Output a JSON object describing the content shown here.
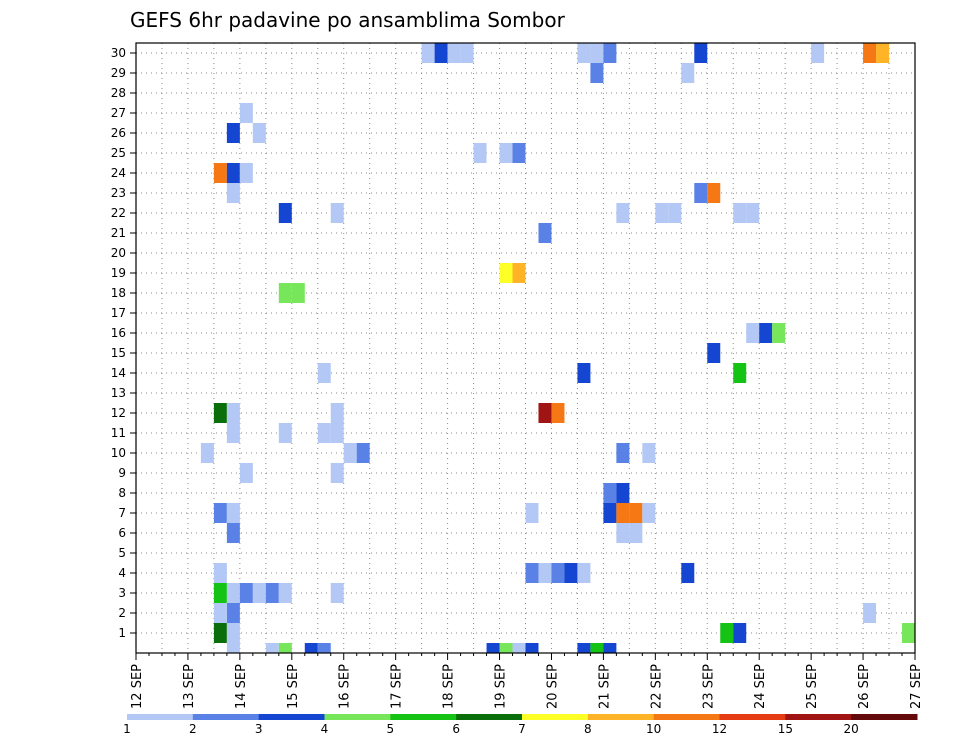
{
  "chart_data": {
    "type": "heatmap",
    "title": "GEFS 6hr padavine po ansamblima Sombor",
    "x_ticks": [
      "12 SEP",
      "13 SEP",
      "14 SEP",
      "15 SEP",
      "16 SEP",
      "17 SEP",
      "18 SEP",
      "19 SEP",
      "20 SEP",
      "21 SEP",
      "22 SEP",
      "23 SEP",
      "24 SEP",
      "25 SEP",
      "26 SEP",
      "27 SEP"
    ],
    "y_ticks": [
      "1",
      "2",
      "3",
      "4",
      "5",
      "6",
      "7",
      "8",
      "9",
      "10",
      "11",
      "12",
      "13",
      "14",
      "15",
      "16",
      "17",
      "18",
      "19",
      "20",
      "21",
      "22",
      "23",
      "24",
      "25",
      "26",
      "27",
      "28",
      "29",
      "30"
    ],
    "x_range": [
      "2012-09-12 00Z",
      "2012-09-27 00Z"
    ],
    "y_range": [
      0,
      30
    ],
    "grid": true,
    "colorbar": {
      "labels": [
        "1",
        "2",
        "3",
        "4",
        "5",
        "6",
        "7",
        "8",
        "10",
        "12",
        "15",
        "20"
      ],
      "colors": [
        "#b4c8f5",
        "#5a82e6",
        "#1446d2",
        "#78e65a",
        "#14c314",
        "#0a6e0a",
        "#ffff28",
        "#ffb428",
        "#f57814",
        "#e63c14",
        "#a01414",
        "#640a0a"
      ]
    },
    "cell_units": "6h steps from 12 SEP 00Z",
    "cells": [
      {
        "t": 22,
        "m": 30,
        "v": 1
      },
      {
        "t": 23,
        "m": 30,
        "v": 3
      },
      {
        "t": 24,
        "m": 30,
        "v": 1
      },
      {
        "t": 25,
        "m": 30,
        "v": 1
      },
      {
        "t": 6,
        "m": 1,
        "v": 6
      },
      {
        "t": 7,
        "m": 1,
        "v": 1
      },
      {
        "t": 6,
        "m": 3,
        "v": 5
      },
      {
        "t": 7,
        "m": 3,
        "v": 1
      },
      {
        "t": 8,
        "m": 3,
        "v": 2
      },
      {
        "t": 9,
        "m": 3,
        "v": 1
      },
      {
        "t": 10,
        "m": 3,
        "v": 2
      },
      {
        "t": 11,
        "m": 3,
        "v": 1
      },
      {
        "t": 6,
        "m": 4,
        "v": 1
      },
      {
        "t": 7,
        "m": 2,
        "v": 2
      },
      {
        "t": 6,
        "m": 7,
        "v": 2
      },
      {
        "t": 7,
        "m": 7,
        "v": 1
      },
      {
        "t": 7,
        "m": 6,
        "v": 2
      },
      {
        "t": 5,
        "m": 10,
        "v": 1
      },
      {
        "t": 6,
        "m": 12,
        "v": 6
      },
      {
        "t": 7,
        "m": 12,
        "v": 1
      },
      {
        "t": 7,
        "m": 11,
        "v": 1
      },
      {
        "t": 8,
        "m": 9,
        "v": 1
      },
      {
        "t": 6,
        "m": 24,
        "v": 10
      },
      {
        "t": 7,
        "m": 24,
        "v": 3
      },
      {
        "t": 8,
        "m": 24,
        "v": 1
      },
      {
        "t": 7,
        "m": 23,
        "v": 1
      },
      {
        "t": 7,
        "m": 26,
        "v": 3
      },
      {
        "t": 9,
        "m": 26,
        "v": 1
      },
      {
        "t": 8,
        "m": 27,
        "v": 1
      },
      {
        "t": 6,
        "m": 2,
        "v": 1
      },
      {
        "t": 11,
        "m": 22,
        "v": 3
      },
      {
        "t": 11,
        "m": 18,
        "v": 4
      },
      {
        "t": 11,
        "m": 11,
        "v": 1
      },
      {
        "t": 14,
        "m": 14,
        "v": 1
      },
      {
        "t": 14,
        "m": 11,
        "v": 1
      },
      {
        "t": 15,
        "m": 11,
        "v": 1
      },
      {
        "t": 15,
        "m": 12,
        "v": 1
      },
      {
        "t": 16,
        "m": 10,
        "v": 1
      },
      {
        "t": 17,
        "m": 10,
        "v": 2
      },
      {
        "t": 15,
        "m": 9,
        "v": 1
      },
      {
        "t": 15,
        "m": 22,
        "v": 1
      },
      {
        "t": 15,
        "m": 3,
        "v": 1
      },
      {
        "t": 26,
        "m": 25,
        "v": 1
      },
      {
        "t": 28,
        "m": 25,
        "v": 1
      },
      {
        "t": 29,
        "m": 25,
        "v": 2
      },
      {
        "t": 28,
        "m": 19,
        "v": 7
      },
      {
        "t": 29,
        "m": 19,
        "v": 8
      },
      {
        "t": 31,
        "m": 21,
        "v": 2
      },
      {
        "t": 31,
        "m": 12,
        "v": 15
      },
      {
        "t": 32,
        "m": 12,
        "v": 10
      },
      {
        "t": 30,
        "m": 7,
        "v": 1
      },
      {
        "t": 30,
        "m": 4,
        "v": 2
      },
      {
        "t": 31,
        "m": 4,
        "v": 1
      },
      {
        "t": 32,
        "m": 4,
        "v": 2
      },
      {
        "t": 33,
        "m": 4,
        "v": 3
      },
      {
        "t": 34,
        "m": 4,
        "v": 1
      },
      {
        "t": 35,
        "m": 29,
        "v": 2
      },
      {
        "t": 34,
        "m": 30,
        "v": 1
      },
      {
        "t": 35,
        "m": 30,
        "v": 1
      },
      {
        "t": 36,
        "m": 30,
        "v": 2
      },
      {
        "t": 34,
        "m": 14,
        "v": 3
      },
      {
        "t": 37,
        "m": 22,
        "v": 1
      },
      {
        "t": 37,
        "m": 10,
        "v": 2
      },
      {
        "t": 39,
        "m": 10,
        "v": 1
      },
      {
        "t": 36,
        "m": 8,
        "v": 2
      },
      {
        "t": 37,
        "m": 8,
        "v": 3
      },
      {
        "t": 36,
        "m": 7,
        "v": 3
      },
      {
        "t": 37,
        "m": 7,
        "v": 10
      },
      {
        "t": 38,
        "m": 7,
        "v": 10
      },
      {
        "t": 39,
        "m": 7,
        "v": 1
      },
      {
        "t": 37,
        "m": 6,
        "v": 1
      },
      {
        "t": 38,
        "m": 6,
        "v": 1
      },
      {
        "t": 40,
        "m": 22,
        "v": 1
      },
      {
        "t": 41,
        "m": 22,
        "v": 1
      },
      {
        "t": 42,
        "m": 29,
        "v": 1
      },
      {
        "t": 42,
        "m": 4,
        "v": 3
      },
      {
        "t": 43,
        "m": 23,
        "v": 2
      },
      {
        "t": 44,
        "m": 23,
        "v": 10
      },
      {
        "t": 43,
        "m": 30,
        "v": 3
      },
      {
        "t": 44,
        "m": 15,
        "v": 3
      },
      {
        "t": 46,
        "m": 14,
        "v": 5
      },
      {
        "t": 46,
        "m": 22,
        "v": 1
      },
      {
        "t": 47,
        "m": 22,
        "v": 1
      },
      {
        "t": 47,
        "m": 16,
        "v": 1
      },
      {
        "t": 48,
        "m": 16,
        "v": 3
      },
      {
        "t": 49,
        "m": 16,
        "v": 4
      },
      {
        "t": 45,
        "m": 1,
        "v": 5
      },
      {
        "t": 46,
        "m": 1,
        "v": 3
      },
      {
        "t": 52,
        "m": 30,
        "v": 1
      },
      {
        "t": 56,
        "m": 30,
        "v": 10
      },
      {
        "t": 57,
        "m": 30,
        "v": 8
      },
      {
        "t": 56,
        "m": 2,
        "v": 1
      },
      {
        "t": 59,
        "m": 1,
        "v": 4
      },
      {
        "t": 12,
        "m": 18,
        "v": 4
      }
    ],
    "bottom_row": [
      {
        "t": 7,
        "v": 1
      },
      {
        "t": 10,
        "v": 1
      },
      {
        "t": 11,
        "v": 4
      },
      {
        "t": 13,
        "v": 3
      },
      {
        "t": 14,
        "v": 2
      },
      {
        "t": 27,
        "v": 3
      },
      {
        "t": 28,
        "v": 4
      },
      {
        "t": 29,
        "v": 1
      },
      {
        "t": 30,
        "v": 3
      },
      {
        "t": 34,
        "v": 3
      },
      {
        "t": 35,
        "v": 5
      },
      {
        "t": 36,
        "v": 3
      }
    ]
  }
}
